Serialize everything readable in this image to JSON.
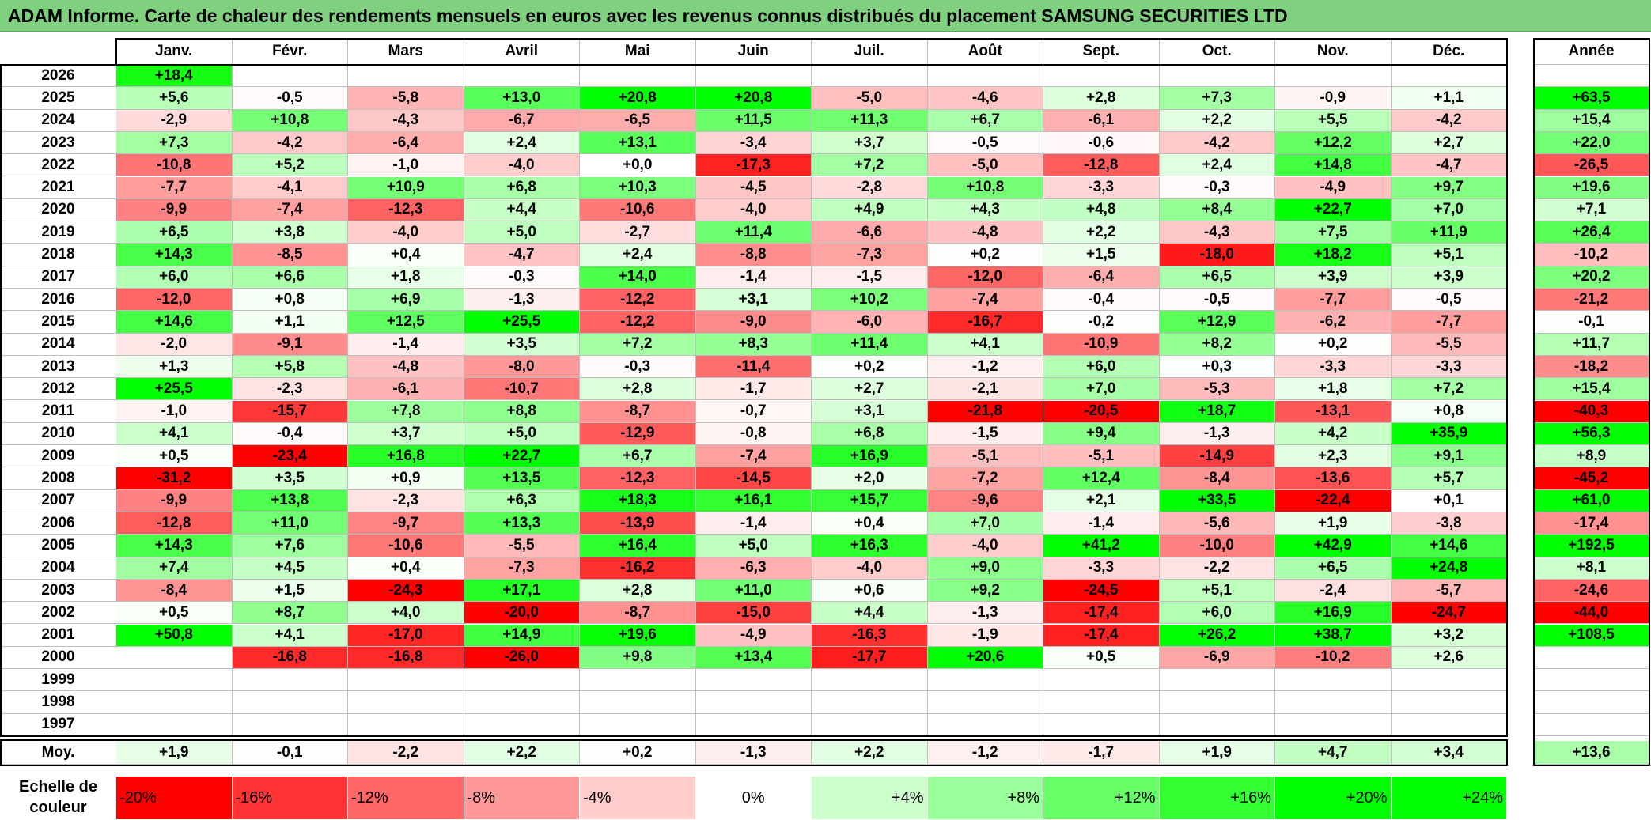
{
  "title": "ADAM Informe. Carte de chaleur des rendements mensuels en euros avec les revenus connus distribués du placement SAMSUNG SECURITIES LTD",
  "chart_data": {
    "type": "heatmap",
    "columns": [
      "Janv.",
      "Févr.",
      "Mars",
      "Avril",
      "Mai",
      "Juin",
      "Juil.",
      "Août",
      "Sept.",
      "Oct.",
      "Nov.",
      "Déc."
    ],
    "year_column": "Année",
    "rows": [
      {
        "year": "2026",
        "values": [
          "+18,4",
          null,
          null,
          null,
          null,
          null,
          null,
          null,
          null,
          null,
          null,
          null
        ],
        "annual": null
      },
      {
        "year": "2025",
        "values": [
          "+5,6",
          "-0,5",
          "-5,8",
          "+13,0",
          "+20,8",
          "+20,8",
          "-5,0",
          "-4,6",
          "+2,8",
          "+7,3",
          "-0,9",
          "+1,1"
        ],
        "annual": "+63,5"
      },
      {
        "year": "2024",
        "values": [
          "-2,9",
          "+10,8",
          "-4,3",
          "-6,7",
          "-6,5",
          "+11,5",
          "+11,3",
          "+6,7",
          "-6,1",
          "+2,2",
          "+5,5",
          "-4,2"
        ],
        "annual": "+15,4"
      },
      {
        "year": "2023",
        "values": [
          "+7,3",
          "-4,2",
          "-6,4",
          "+2,4",
          "+13,1",
          "-3,4",
          "+3,7",
          "-0,5",
          "-0,6",
          "-4,2",
          "+12,2",
          "+2,7"
        ],
        "annual": "+22,0"
      },
      {
        "year": "2022",
        "values": [
          "-10,8",
          "+5,2",
          "-1,0",
          "-4,0",
          "+0,0",
          "-17,3",
          "+7,2",
          "-5,0",
          "-12,8",
          "+2,4",
          "+14,8",
          "-4,7"
        ],
        "annual": "-26,5"
      },
      {
        "year": "2021",
        "values": [
          "-7,7",
          "-4,1",
          "+10,9",
          "+6,8",
          "+10,3",
          "-4,5",
          "-2,8",
          "+10,8",
          "-3,3",
          "-0,3",
          "-4,9",
          "+9,7"
        ],
        "annual": "+19,6"
      },
      {
        "year": "2020",
        "values": [
          "-9,9",
          "-7,4",
          "-12,3",
          "+4,4",
          "-10,6",
          "-4,0",
          "+4,9",
          "+4,3",
          "+4,8",
          "+8,4",
          "+22,7",
          "+7,0"
        ],
        "annual": "+7,1"
      },
      {
        "year": "2019",
        "values": [
          "+6,5",
          "+3,8",
          "-4,0",
          "+5,0",
          "-2,7",
          "+11,4",
          "-6,6",
          "-4,8",
          "+2,2",
          "-4,3",
          "+7,5",
          "+11,9"
        ],
        "annual": "+26,4"
      },
      {
        "year": "2018",
        "values": [
          "+14,3",
          "-8,5",
          "+0,4",
          "-4,7",
          "+2,4",
          "-8,8",
          "-7,3",
          "+0,2",
          "+1,5",
          "-18,0",
          "+18,2",
          "+5,1"
        ],
        "annual": "-10,2"
      },
      {
        "year": "2017",
        "values": [
          "+6,0",
          "+6,6",
          "+1,8",
          "-0,3",
          "+14,0",
          "-1,4",
          "-1,5",
          "-12,0",
          "-6,4",
          "+6,5",
          "+3,9",
          "+3,9"
        ],
        "annual": "+20,2"
      },
      {
        "year": "2016",
        "values": [
          "-12,0",
          "+0,8",
          "+6,9",
          "-1,3",
          "-12,2",
          "+3,1",
          "+10,2",
          "-7,4",
          "-0,4",
          "-0,5",
          "-7,7",
          "-0,5"
        ],
        "annual": "-21,2"
      },
      {
        "year": "2015",
        "values": [
          "+14,6",
          "+1,1",
          "+12,5",
          "+25,5",
          "-12,2",
          "-9,0",
          "-6,0",
          "-16,7",
          "-0,2",
          "+12,9",
          "-6,2",
          "-7,7"
        ],
        "annual": "-0,1"
      },
      {
        "year": "2014",
        "values": [
          "-2,0",
          "-9,1",
          "-1,4",
          "+3,5",
          "+7,2",
          "+8,3",
          "+11,4",
          "+4,1",
          "-10,9",
          "+8,2",
          "+0,2",
          "-5,5"
        ],
        "annual": "+11,7"
      },
      {
        "year": "2013",
        "values": [
          "+1,3",
          "+5,8",
          "-4,8",
          "-8,0",
          "-0,3",
          "-11,4",
          "+0,2",
          "-1,2",
          "+6,0",
          "+0,3",
          "-3,3",
          "-3,3"
        ],
        "annual": "-18,2"
      },
      {
        "year": "2012",
        "values": [
          "+25,5",
          "-2,3",
          "-6,1",
          "-10,7",
          "+2,8",
          "-1,7",
          "+2,7",
          "-2,1",
          "+7,0",
          "-5,3",
          "+1,8",
          "+7,2"
        ],
        "annual": "+15,4"
      },
      {
        "year": "2011",
        "values": [
          "-1,0",
          "-15,7",
          "+7,8",
          "+8,8",
          "-8,7",
          "-0,7",
          "+3,1",
          "-21,8",
          "-20,5",
          "+18,7",
          "-13,1",
          "+0,8"
        ],
        "annual": "-40,3"
      },
      {
        "year": "2010",
        "values": [
          "+4,1",
          "-0,4",
          "+3,7",
          "+5,0",
          "-12,9",
          "-0,8",
          "+6,8",
          "-1,5",
          "+9,4",
          "-1,3",
          "+4,2",
          "+35,9"
        ],
        "annual": "+56,3"
      },
      {
        "year": "2009",
        "values": [
          "+0,5",
          "-23,4",
          "+16,8",
          "+22,7",
          "+6,7",
          "-7,4",
          "+16,9",
          "-5,1",
          "-5,1",
          "-14,9",
          "+2,3",
          "+9,1"
        ],
        "annual": "+8,9"
      },
      {
        "year": "2008",
        "values": [
          "-31,2",
          "+3,5",
          "+0,9",
          "+13,5",
          "-12,3",
          "-14,5",
          "+2,0",
          "-7,2",
          "+12,4",
          "-8,4",
          "-13,6",
          "+5,7"
        ],
        "annual": "-45,2"
      },
      {
        "year": "2007",
        "values": [
          "-9,9",
          "+13,8",
          "-2,3",
          "+6,3",
          "+18,3",
          "+16,1",
          "+15,7",
          "-9,6",
          "+2,1",
          "+33,5",
          "-22,4",
          "+0,1"
        ],
        "annual": "+61,0"
      },
      {
        "year": "2006",
        "values": [
          "-12,8",
          "+11,0",
          "-9,7",
          "+13,3",
          "-13,9",
          "-1,4",
          "+0,4",
          "+7,0",
          "-1,4",
          "-5,6",
          "+1,9",
          "-3,8"
        ],
        "annual": "-17,4"
      },
      {
        "year": "2005",
        "values": [
          "+14,3",
          "+7,6",
          "-10,6",
          "-5,5",
          "+16,4",
          "+5,0",
          "+16,3",
          "-4,0",
          "+41,2",
          "-10,0",
          "+42,9",
          "+14,6"
        ],
        "annual": "+192,5"
      },
      {
        "year": "2004",
        "values": [
          "+7,4",
          "+4,5",
          "+0,4",
          "-7,3",
          "-16,2",
          "-6,3",
          "-4,0",
          "+9,0",
          "-3,3",
          "-2,2",
          "+6,5",
          "+24,8"
        ],
        "annual": "+8,1"
      },
      {
        "year": "2003",
        "values": [
          "-8,4",
          "+1,5",
          "-24,3",
          "+17,1",
          "+2,8",
          "+11,0",
          "+0,6",
          "+9,2",
          "-24,5",
          "+5,1",
          "-2,4",
          "-5,7"
        ],
        "annual": "-24,6"
      },
      {
        "year": "2002",
        "values": [
          "+0,5",
          "+8,7",
          "+4,0",
          "-20,0",
          "-8,7",
          "-15,0",
          "+4,4",
          "-1,3",
          "-17,4",
          "+6,0",
          "+16,9",
          "-24,7"
        ],
        "annual": "-44,0"
      },
      {
        "year": "2001",
        "values": [
          "+50,8",
          "+4,1",
          "-17,0",
          "+14,9",
          "+19,6",
          "-4,9",
          "-16,3",
          "-1,9",
          "-17,4",
          "+26,2",
          "+38,7",
          "+3,2"
        ],
        "annual": "+108,5"
      },
      {
        "year": "2000",
        "values": [
          null,
          "-16,8",
          "-16,8",
          "-26,0",
          "+9,8",
          "+13,4",
          "-17,7",
          "+20,6",
          "+0,5",
          "-6,9",
          "-10,2",
          "+2,6"
        ],
        "annual": null
      },
      {
        "year": "1999",
        "values": [
          null,
          null,
          null,
          null,
          null,
          null,
          null,
          null,
          null,
          null,
          null,
          null
        ],
        "annual": null
      },
      {
        "year": "1998",
        "values": [
          null,
          null,
          null,
          null,
          null,
          null,
          null,
          null,
          null,
          null,
          null,
          null
        ],
        "annual": null
      },
      {
        "year": "1997",
        "values": [
          null,
          null,
          null,
          null,
          null,
          null,
          null,
          null,
          null,
          null,
          null,
          null
        ],
        "annual": null
      }
    ],
    "average": {
      "label": "Moy.",
      "values": [
        "+1,9",
        "-0,1",
        "-2,2",
        "+2,2",
        "+0,2",
        "-1,3",
        "+2,2",
        "-1,2",
        "-1,7",
        "+1,9",
        "+4,7",
        "+3,4"
      ],
      "annual": "+13,6"
    },
    "scale": {
      "label": "Echelle de couleur",
      "steps": [
        "-20%",
        "-16%",
        "-12%",
        "-8%",
        "-4%",
        "0%",
        "+4%",
        "+8%",
        "+12%",
        "+16%",
        "+20%",
        "+24%"
      ],
      "step_values": [
        -20,
        -16,
        -12,
        -8,
        -4,
        0,
        4,
        8,
        12,
        16,
        20,
        24
      ]
    },
    "colors": {
      "negative_max": "#ff0000",
      "neutral": "#ffffff",
      "positive_max": "#00ff00",
      "title_bg": "#7fd17f"
    }
  }
}
